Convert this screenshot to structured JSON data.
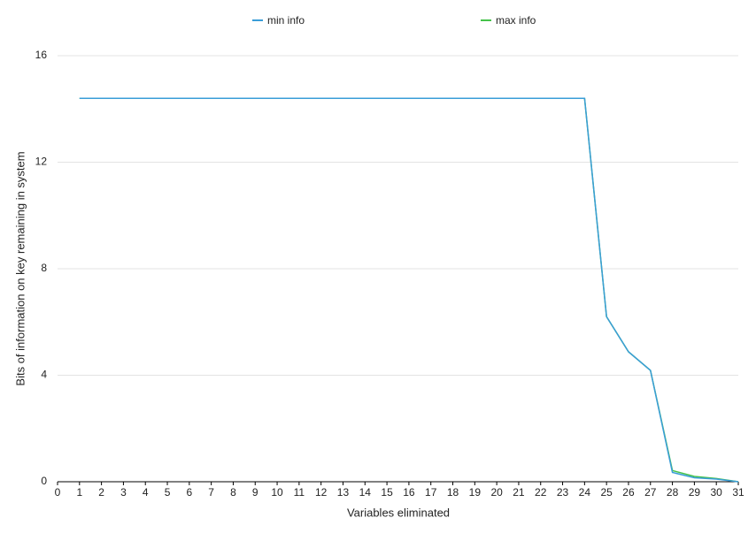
{
  "chart_data": {
    "type": "line",
    "x_label": "Variables eliminated",
    "y_label": "Bits of information on key remaining in system",
    "x": [
      1,
      2,
      3,
      4,
      5,
      6,
      7,
      8,
      9,
      10,
      11,
      12,
      13,
      14,
      15,
      16,
      17,
      18,
      19,
      20,
      21,
      22,
      23,
      24,
      25,
      26,
      27,
      28,
      29,
      30,
      31
    ],
    "series": [
      {
        "name": "min info",
        "color": "#3a9dd8",
        "values": [
          14.4,
          14.4,
          14.4,
          14.4,
          14.4,
          14.4,
          14.4,
          14.4,
          14.4,
          14.4,
          14.4,
          14.4,
          14.4,
          14.4,
          14.4,
          14.4,
          14.4,
          14.4,
          14.4,
          14.4,
          14.4,
          14.4,
          14.4,
          14.4,
          6.2,
          4.88,
          4.18,
          0.35,
          0.15,
          0.1,
          0
        ]
      },
      {
        "name": "max info",
        "color": "#45c24a",
        "values": [
          14.4,
          14.4,
          14.4,
          14.4,
          14.4,
          14.4,
          14.4,
          14.4,
          14.4,
          14.4,
          14.4,
          14.4,
          14.4,
          14.4,
          14.4,
          14.4,
          14.4,
          14.4,
          14.4,
          14.4,
          14.4,
          14.4,
          14.4,
          14.4,
          6.2,
          4.88,
          4.18,
          0.42,
          0.2,
          0.12,
          0
        ]
      }
    ],
    "xlim": [
      0,
      31
    ],
    "xticks": [
      0,
      1,
      2,
      3,
      4,
      5,
      6,
      7,
      8,
      9,
      10,
      11,
      12,
      13,
      14,
      15,
      16,
      17,
      18,
      19,
      20,
      21,
      22,
      23,
      24,
      25,
      26,
      27,
      28,
      29,
      30,
      31
    ],
    "ylim": [
      0,
      16
    ],
    "yticks": [
      0,
      4,
      8,
      12,
      16
    ],
    "grid": true,
    "legend": "top"
  }
}
